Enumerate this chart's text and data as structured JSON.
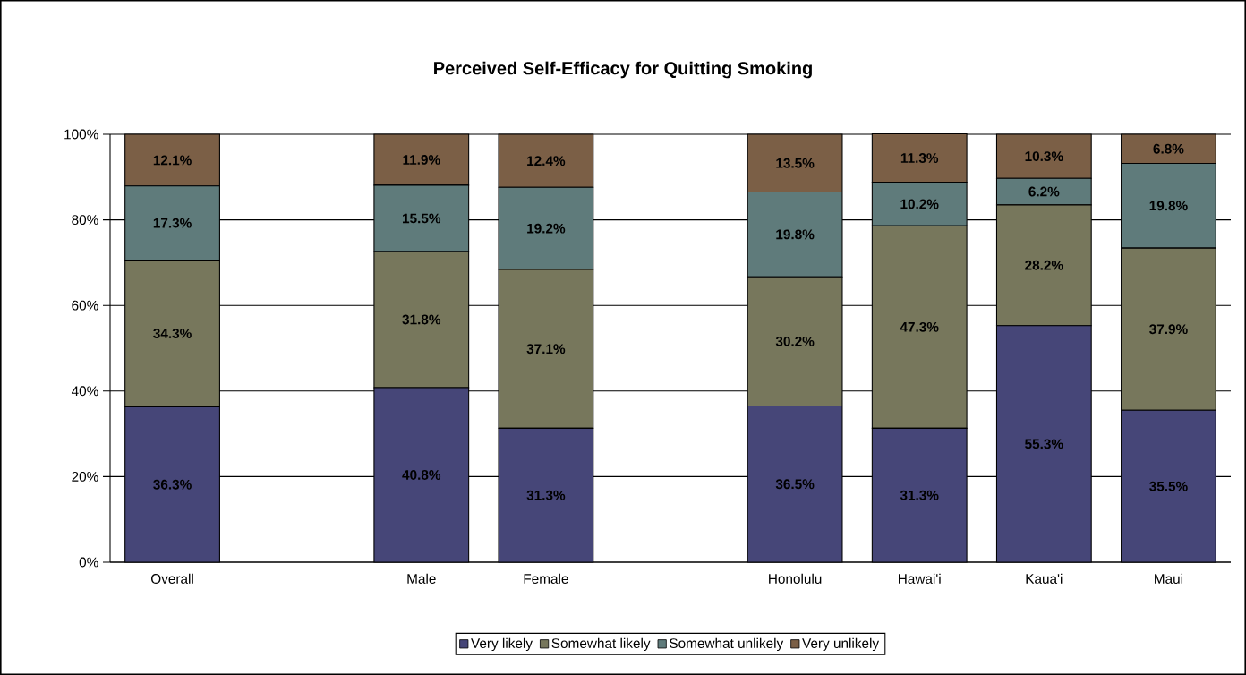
{
  "chart_data": {
    "type": "bar",
    "stacked": true,
    "title": "Perceived Self-Efficacy for Quitting Smoking",
    "categories": [
      "Overall",
      null,
      "Male",
      "Female",
      null,
      "Honolulu",
      "Hawai'i",
      "Kaua'i",
      "Maui"
    ],
    "series": [
      {
        "name": "Very likely",
        "color": "#464678",
        "values": [
          36.3,
          null,
          40.8,
          31.3,
          null,
          36.5,
          31.3,
          55.3,
          35.5
        ],
        "value_labels": [
          "36.3%",
          null,
          "40.8%",
          "31.3%",
          null,
          "36.5%",
          "31.3%",
          "55.3%",
          "35.5%"
        ]
      },
      {
        "name": "Somewhat likely",
        "color": "#77775c",
        "values": [
          34.3,
          null,
          31.8,
          37.1,
          null,
          30.2,
          47.3,
          28.2,
          37.9
        ],
        "value_labels": [
          "34.3%",
          null,
          "31.8%",
          "37.1%",
          null,
          "30.2%",
          "47.3%",
          "28.2%",
          "37.9%"
        ]
      },
      {
        "name": "Somewhat unlikely",
        "color": "#5f7b7b",
        "values": [
          17.3,
          null,
          15.5,
          19.2,
          null,
          19.8,
          10.2,
          6.2,
          19.8
        ],
        "value_labels": [
          "17.3%",
          null,
          "15.5%",
          "19.2%",
          null,
          "19.8%",
          "10.2%",
          "6.2%",
          "19.8%"
        ]
      },
      {
        "name": "Very unlikely",
        "color": "#7b5f46",
        "values": [
          12.1,
          null,
          11.9,
          12.4,
          null,
          13.5,
          11.3,
          10.3,
          6.8
        ],
        "value_labels": [
          "12.1%",
          null,
          "11.9%",
          "12.4%",
          null,
          "13.5%",
          "11.3%",
          "10.3%",
          "6.8%"
        ]
      }
    ],
    "ylim": [
      0,
      100
    ],
    "yticks": [
      {
        "value": 0,
        "label": "0%"
      },
      {
        "value": 20,
        "label": "20%"
      },
      {
        "value": 40,
        "label": "40%"
      },
      {
        "value": 60,
        "label": "60%"
      },
      {
        "value": 80,
        "label": "80%"
      },
      {
        "value": 100,
        "label": "100%"
      }
    ],
    "grid": "y",
    "legend": "bottom"
  }
}
